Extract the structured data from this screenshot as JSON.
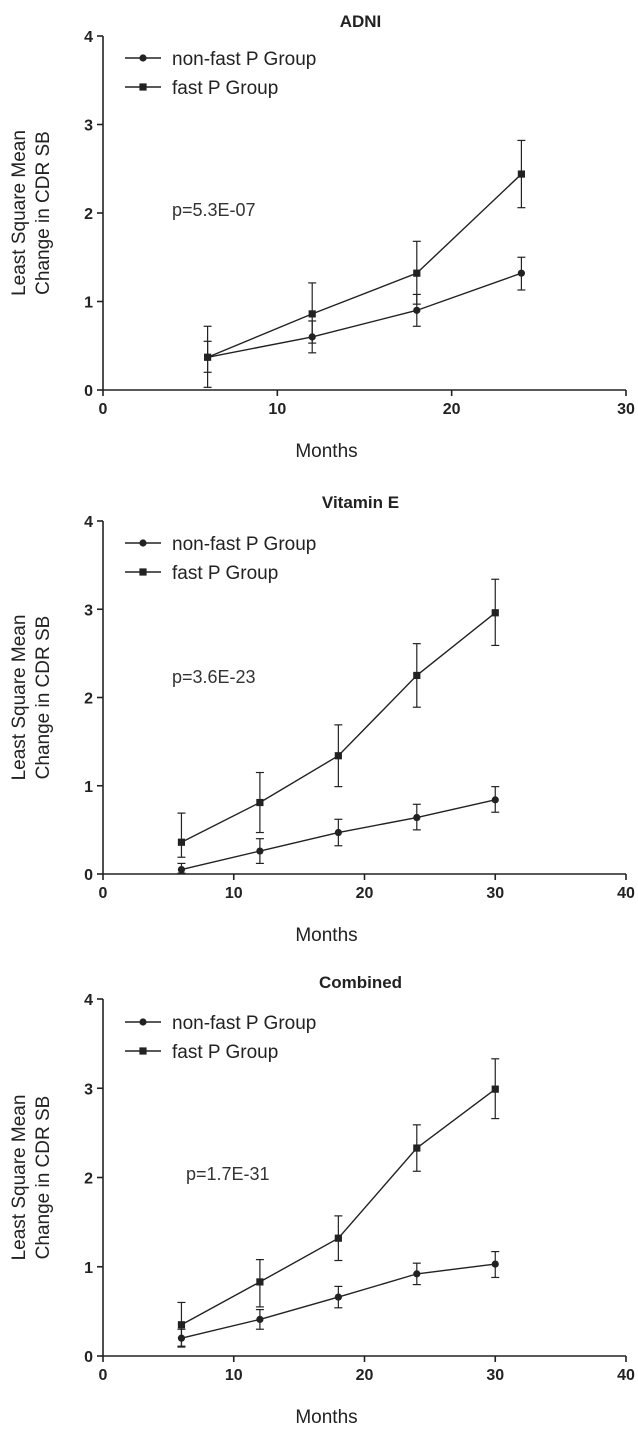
{
  "chart_data": [
    {
      "type": "line",
      "title": "ADNI",
      "xlabel": "Months",
      "ylabel": [
        "Least Square Mean",
        "Change in CDR SB"
      ],
      "xlim": [
        0,
        30
      ],
      "ylim": [
        0,
        4
      ],
      "xticks": [
        0,
        10,
        20,
        30
      ],
      "yticks": [
        0,
        1,
        2,
        3,
        4
      ],
      "legend_position": "top-left",
      "annotation": "p=5.3E-07",
      "series": [
        {
          "name": "non-fast P Group",
          "marker": "circle",
          "x": [
            6,
            12,
            18,
            24
          ],
          "y": [
            0.37,
            0.6,
            0.9,
            1.32
          ],
          "err_low": [
            0.2,
            0.42,
            0.72,
            1.13
          ],
          "err_high": [
            0.55,
            0.78,
            1.08,
            1.5
          ]
        },
        {
          "name": "fast P Group",
          "marker": "square",
          "x": [
            6,
            12,
            18,
            24
          ],
          "y": [
            0.37,
            0.86,
            1.32,
            2.44
          ],
          "err_low": [
            0.03,
            0.53,
            0.97,
            2.06
          ],
          "err_high": [
            0.72,
            1.21,
            1.68,
            2.82
          ]
        }
      ]
    },
    {
      "type": "line",
      "title": "Vitamin E",
      "xlabel": "Months",
      "ylabel": [
        "Least Square Mean",
        "Change in CDR SB"
      ],
      "xlim": [
        0,
        40
      ],
      "ylim": [
        0,
        4
      ],
      "xticks": [
        0,
        10,
        20,
        30,
        40
      ],
      "yticks": [
        0,
        1,
        2,
        3,
        4
      ],
      "legend_position": "top-left",
      "annotation": "p=3.6E-23",
      "series": [
        {
          "name": "non-fast P Group",
          "marker": "circle",
          "x": [
            6,
            12,
            18,
            24,
            30
          ],
          "y": [
            0.05,
            0.26,
            0.47,
            0.64,
            0.84
          ],
          "err_low": [
            0.01,
            0.12,
            0.32,
            0.5,
            0.7
          ],
          "err_high": [
            0.12,
            0.4,
            0.62,
            0.79,
            0.99
          ]
        },
        {
          "name": "fast P Group",
          "marker": "square",
          "x": [
            6,
            12,
            18,
            24,
            30
          ],
          "y": [
            0.36,
            0.81,
            1.34,
            2.25,
            2.96
          ],
          "err_low": [
            0.19,
            0.47,
            0.99,
            1.89,
            2.59
          ],
          "err_high": [
            0.69,
            1.15,
            1.69,
            2.61,
            3.34
          ]
        }
      ]
    },
    {
      "type": "line",
      "title": "Combined",
      "xlabel": "Months",
      "ylabel": [
        "Least Square Mean",
        "Change in CDR SB"
      ],
      "xlim": [
        0,
        40
      ],
      "ylim": [
        0,
        4
      ],
      "xticks": [
        0,
        10,
        20,
        30,
        40
      ],
      "yticks": [
        0,
        1,
        2,
        3,
        4
      ],
      "legend_position": "top-left",
      "annotation": "p=1.7E-31",
      "series": [
        {
          "name": "non-fast P Group",
          "marker": "circle",
          "x": [
            6,
            12,
            18,
            24,
            30
          ],
          "y": [
            0.2,
            0.41,
            0.66,
            0.92,
            1.03
          ],
          "err_low": [
            0.1,
            0.3,
            0.54,
            0.8,
            0.88
          ],
          "err_high": [
            0.3,
            0.52,
            0.78,
            1.04,
            1.17
          ]
        },
        {
          "name": "fast P Group",
          "marker": "square",
          "x": [
            6,
            12,
            18,
            24,
            30
          ],
          "y": [
            0.35,
            0.83,
            1.32,
            2.33,
            2.99
          ],
          "err_low": [
            0.11,
            0.55,
            1.07,
            2.07,
            2.66
          ],
          "err_high": [
            0.6,
            1.08,
            1.57,
            2.59,
            3.33
          ]
        }
      ]
    }
  ]
}
